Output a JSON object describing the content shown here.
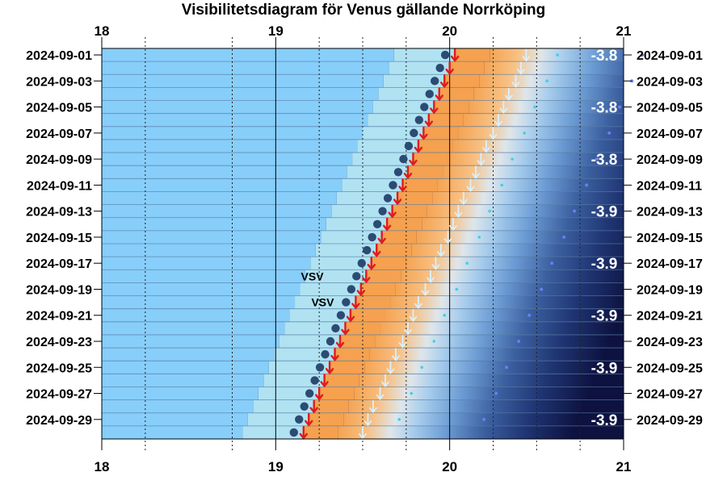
{
  "chart_data": {
    "type": "scatter",
    "title": "Visibilitetsdiagram för Venus gällande Norrköping",
    "x_ticks": [
      "18",
      "19",
      "20",
      "21"
    ],
    "xlim": [
      18,
      21
    ],
    "x_minor_dotted": [
      18.25,
      18.75,
      19.25,
      19.5,
      19.75,
      20.25,
      20.5,
      20.75
    ],
    "dates": [
      "2024-09-01",
      "2024-09-02",
      "2024-09-03",
      "2024-09-04",
      "2024-09-05",
      "2024-09-06",
      "2024-09-07",
      "2024-09-08",
      "2024-09-09",
      "2024-09-10",
      "2024-09-11",
      "2024-09-12",
      "2024-09-13",
      "2024-09-14",
      "2024-09-15",
      "2024-09-16",
      "2024-09-17",
      "2024-09-18",
      "2024-09-19",
      "2024-09-20",
      "2024-09-21",
      "2024-09-22",
      "2024-09-23",
      "2024-09-24",
      "2024-09-25",
      "2024-09-26",
      "2024-09-27",
      "2024-09-28",
      "2024-09-29",
      "2024-09-30"
    ],
    "date_labels": [
      "2024-09-01",
      "2024-09-03",
      "2024-09-05",
      "2024-09-07",
      "2024-09-09",
      "2024-09-11",
      "2024-09-13",
      "2024-09-15",
      "2024-09-17",
      "2024-09-19",
      "2024-09-21",
      "2024-09-23",
      "2024-09-25",
      "2024-09-27",
      "2024-09-29"
    ],
    "sunset_time": [
      20.03,
      20.0,
      19.97,
      19.94,
      19.91,
      19.88,
      19.85,
      19.82,
      19.79,
      19.76,
      19.73,
      19.7,
      19.67,
      19.64,
      19.61,
      19.58,
      19.55,
      19.52,
      19.49,
      19.46,
      19.43,
      19.4,
      19.37,
      19.34,
      19.31,
      19.28,
      19.25,
      19.22,
      19.19,
      19.16
    ],
    "venus_set_time": [
      20.44,
      20.41,
      20.38,
      20.34,
      20.31,
      20.28,
      20.25,
      20.21,
      20.18,
      20.15,
      20.12,
      20.08,
      20.05,
      20.02,
      19.99,
      19.95,
      19.92,
      19.89,
      19.86,
      19.82,
      19.79,
      19.76,
      19.73,
      19.69,
      19.66,
      19.63,
      19.6,
      19.56,
      19.53,
      19.5
    ],
    "magnitude_labels": [
      {
        "date": "2024-09-01",
        "text": "-3.8"
      },
      {
        "date": "2024-09-05",
        "text": "-3.8"
      },
      {
        "date": "2024-09-09",
        "text": "-3.8"
      },
      {
        "date": "2024-09-13",
        "text": "-3.9"
      },
      {
        "date": "2024-09-17",
        "text": "-3.9"
      },
      {
        "date": "2024-09-21",
        "text": "-3.9"
      },
      {
        "date": "2024-09-25",
        "text": "-3.9"
      },
      {
        "date": "2024-09-29",
        "text": "-3.9"
      }
    ],
    "annotations": [
      {
        "date": "2024-09-18",
        "time": 19.21,
        "text": "VSV"
      },
      {
        "date": "2024-09-20",
        "time": 19.27,
        "text": "VSV"
      }
    ],
    "colors": {
      "daylight": "#87cefa",
      "light_band": "#b0e2f2",
      "twilight_orange": "#f5a14f",
      "night": "#0d1240",
      "venus_dot": "#2c4b73",
      "sunset_arrow": "#e21b1b",
      "venus_set_arrow": "#d8f1ff",
      "cyan_dots": "#3fd0e8",
      "blue_dots": "#6b7df0"
    }
  }
}
